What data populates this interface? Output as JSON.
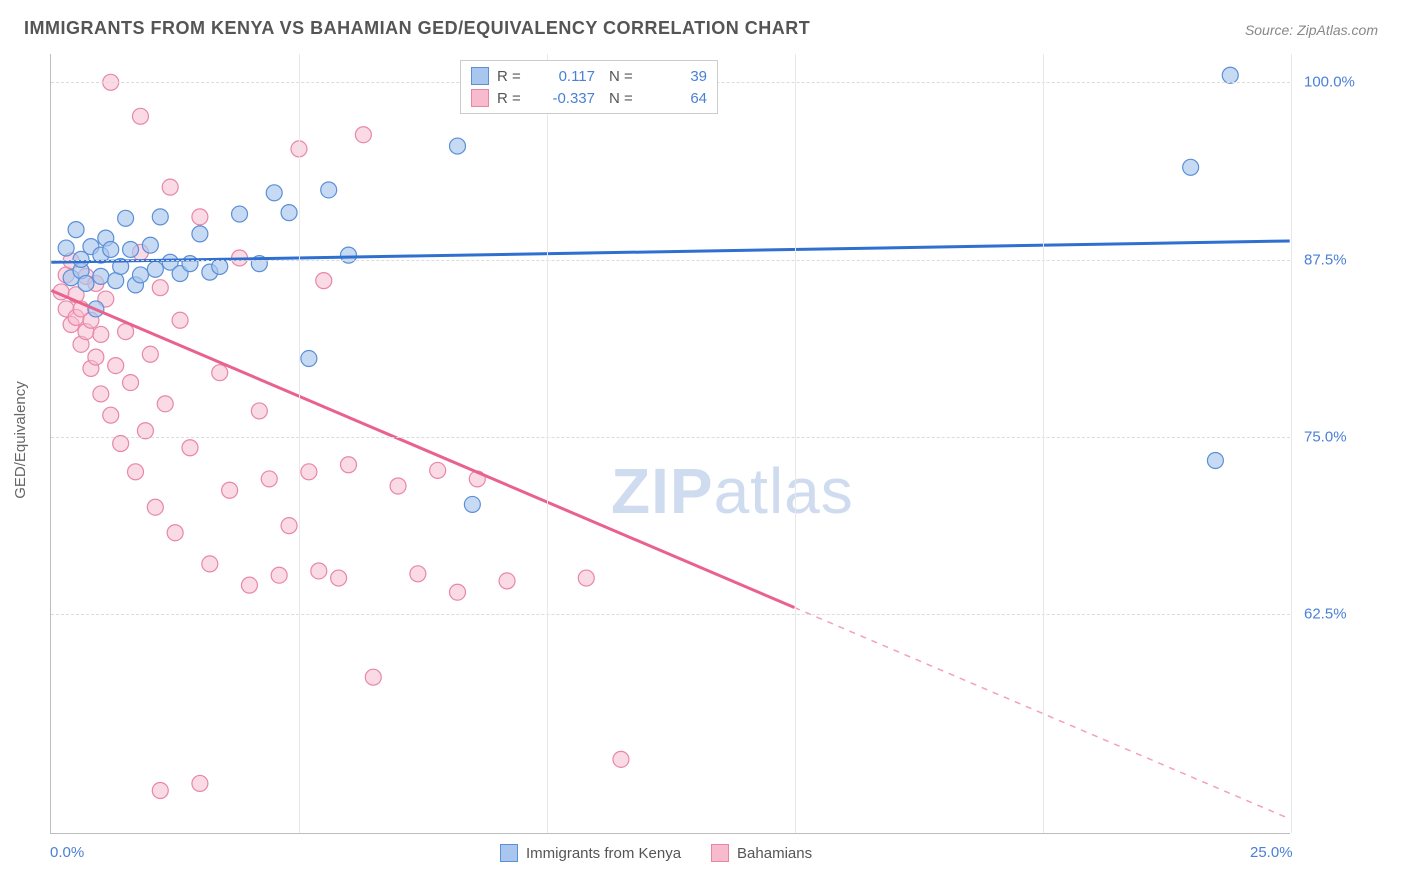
{
  "title": "IMMIGRANTS FROM KENYA VS BAHAMIAN GED/EQUIVALENCY CORRELATION CHART",
  "source": "Source: ZipAtlas.com",
  "ylabel": "GED/Equivalency",
  "watermark_zip": "ZIP",
  "watermark_atlas": "atlas",
  "chart": {
    "type": "scatter",
    "xlim": [
      0,
      25
    ],
    "ylim": [
      47,
      102
    ],
    "xticks": [
      0,
      5,
      10,
      15,
      20,
      25
    ],
    "xtick_labels": [
      "0.0%",
      "",
      "",
      "",
      "",
      "25.0%"
    ],
    "yticks": [
      62.5,
      75,
      87.5,
      100
    ],
    "ytick_labels": [
      "62.5%",
      "75.0%",
      "87.5%",
      "100.0%"
    ],
    "background_color": "#ffffff",
    "grid_color": "#dcdcdc",
    "series": [
      {
        "key": "kenya",
        "label": "Immigrants from Kenya",
        "color_fill": "#a9c6ee",
        "color_stroke": "#5b8fd6",
        "line_color": "#2f6fd0",
        "line_width": 3,
        "line_dash": "none",
        "marker_radius": 8,
        "marker_opacity": 0.65,
        "R": "0.117",
        "N": "39",
        "trend": {
          "x1": 0,
          "y1": 87.3,
          "x2": 25,
          "y2": 88.8
        },
        "points": [
          [
            0.3,
            88.3
          ],
          [
            0.4,
            86.2
          ],
          [
            0.5,
            89.6
          ],
          [
            0.6,
            86.7
          ],
          [
            0.6,
            87.5
          ],
          [
            0.7,
            85.8
          ],
          [
            0.8,
            88.4
          ],
          [
            0.9,
            84.0
          ],
          [
            1.0,
            86.3
          ],
          [
            1.0,
            87.8
          ],
          [
            1.1,
            89.0
          ],
          [
            1.2,
            88.2
          ],
          [
            1.3,
            86.0
          ],
          [
            1.4,
            87.0
          ],
          [
            1.5,
            90.4
          ],
          [
            1.6,
            88.2
          ],
          [
            1.7,
            85.7
          ],
          [
            1.8,
            86.4
          ],
          [
            2.0,
            88.5
          ],
          [
            2.1,
            86.8
          ],
          [
            2.2,
            90.5
          ],
          [
            2.4,
            87.3
          ],
          [
            2.6,
            86.5
          ],
          [
            2.8,
            87.2
          ],
          [
            3.0,
            89.3
          ],
          [
            3.2,
            86.6
          ],
          [
            3.4,
            87.0
          ],
          [
            3.8,
            90.7
          ],
          [
            4.2,
            87.2
          ],
          [
            4.5,
            92.2
          ],
          [
            4.8,
            90.8
          ],
          [
            5.2,
            80.5
          ],
          [
            5.6,
            92.4
          ],
          [
            6.0,
            87.8
          ],
          [
            8.2,
            95.5
          ],
          [
            8.5,
            70.2
          ],
          [
            23.0,
            94.0
          ],
          [
            23.8,
            100.5
          ],
          [
            23.5,
            73.3
          ]
        ]
      },
      {
        "key": "bahamians",
        "label": "Bahamians",
        "color_fill": "#f6bccd",
        "color_stroke": "#e986a7",
        "line_color": "#e9628d",
        "line_width": 3,
        "line_dash": "solid_then_dash",
        "marker_radius": 8,
        "marker_opacity": 0.55,
        "R": "-0.337",
        "N": "64",
        "trend": {
          "x1": 0,
          "y1": 85.3,
          "x2": 25,
          "y2": 48.0
        },
        "trend_dash_from_x": 15,
        "points": [
          [
            0.2,
            85.2
          ],
          [
            0.3,
            84.0
          ],
          [
            0.3,
            86.4
          ],
          [
            0.4,
            82.9
          ],
          [
            0.4,
            87.4
          ],
          [
            0.5,
            83.4
          ],
          [
            0.5,
            85.0
          ],
          [
            0.6,
            81.5
          ],
          [
            0.6,
            84.0
          ],
          [
            0.7,
            82.4
          ],
          [
            0.7,
            86.3
          ],
          [
            0.8,
            79.8
          ],
          [
            0.8,
            83.2
          ],
          [
            0.9,
            80.6
          ],
          [
            0.9,
            85.8
          ],
          [
            1.0,
            78.0
          ],
          [
            1.0,
            82.2
          ],
          [
            1.1,
            84.7
          ],
          [
            1.2,
            76.5
          ],
          [
            1.3,
            80.0
          ],
          [
            1.4,
            74.5
          ],
          [
            1.5,
            82.4
          ],
          [
            1.6,
            78.8
          ],
          [
            1.7,
            72.5
          ],
          [
            1.8,
            88.0
          ],
          [
            1.9,
            75.4
          ],
          [
            2.0,
            80.8
          ],
          [
            2.1,
            70.0
          ],
          [
            2.2,
            85.5
          ],
          [
            2.3,
            77.3
          ],
          [
            2.4,
            92.6
          ],
          [
            2.5,
            68.2
          ],
          [
            2.6,
            83.2
          ],
          [
            2.8,
            74.2
          ],
          [
            3.0,
            90.5
          ],
          [
            3.2,
            66.0
          ],
          [
            3.4,
            79.5
          ],
          [
            3.6,
            71.2
          ],
          [
            3.8,
            87.6
          ],
          [
            4.0,
            64.5
          ],
          [
            4.2,
            76.8
          ],
          [
            4.4,
            72.0
          ],
          [
            4.8,
            68.7
          ],
          [
            5.0,
            95.3
          ],
          [
            5.2,
            72.5
          ],
          [
            5.5,
            86.0
          ],
          [
            5.8,
            65.0
          ],
          [
            6.0,
            73.0
          ],
          [
            6.3,
            96.3
          ],
          [
            6.5,
            58.0
          ],
          [
            7.0,
            71.5
          ],
          [
            7.4,
            65.3
          ],
          [
            7.8,
            72.6
          ],
          [
            8.2,
            64.0
          ],
          [
            8.6,
            72.0
          ],
          [
            1.2,
            100.0
          ],
          [
            1.8,
            97.6
          ],
          [
            2.2,
            50.0
          ],
          [
            3.0,
            50.5
          ],
          [
            4.6,
            65.2
          ],
          [
            5.4,
            65.5
          ],
          [
            9.2,
            64.8
          ],
          [
            10.8,
            65.0
          ],
          [
            11.5,
            52.2
          ]
        ]
      }
    ]
  }
}
